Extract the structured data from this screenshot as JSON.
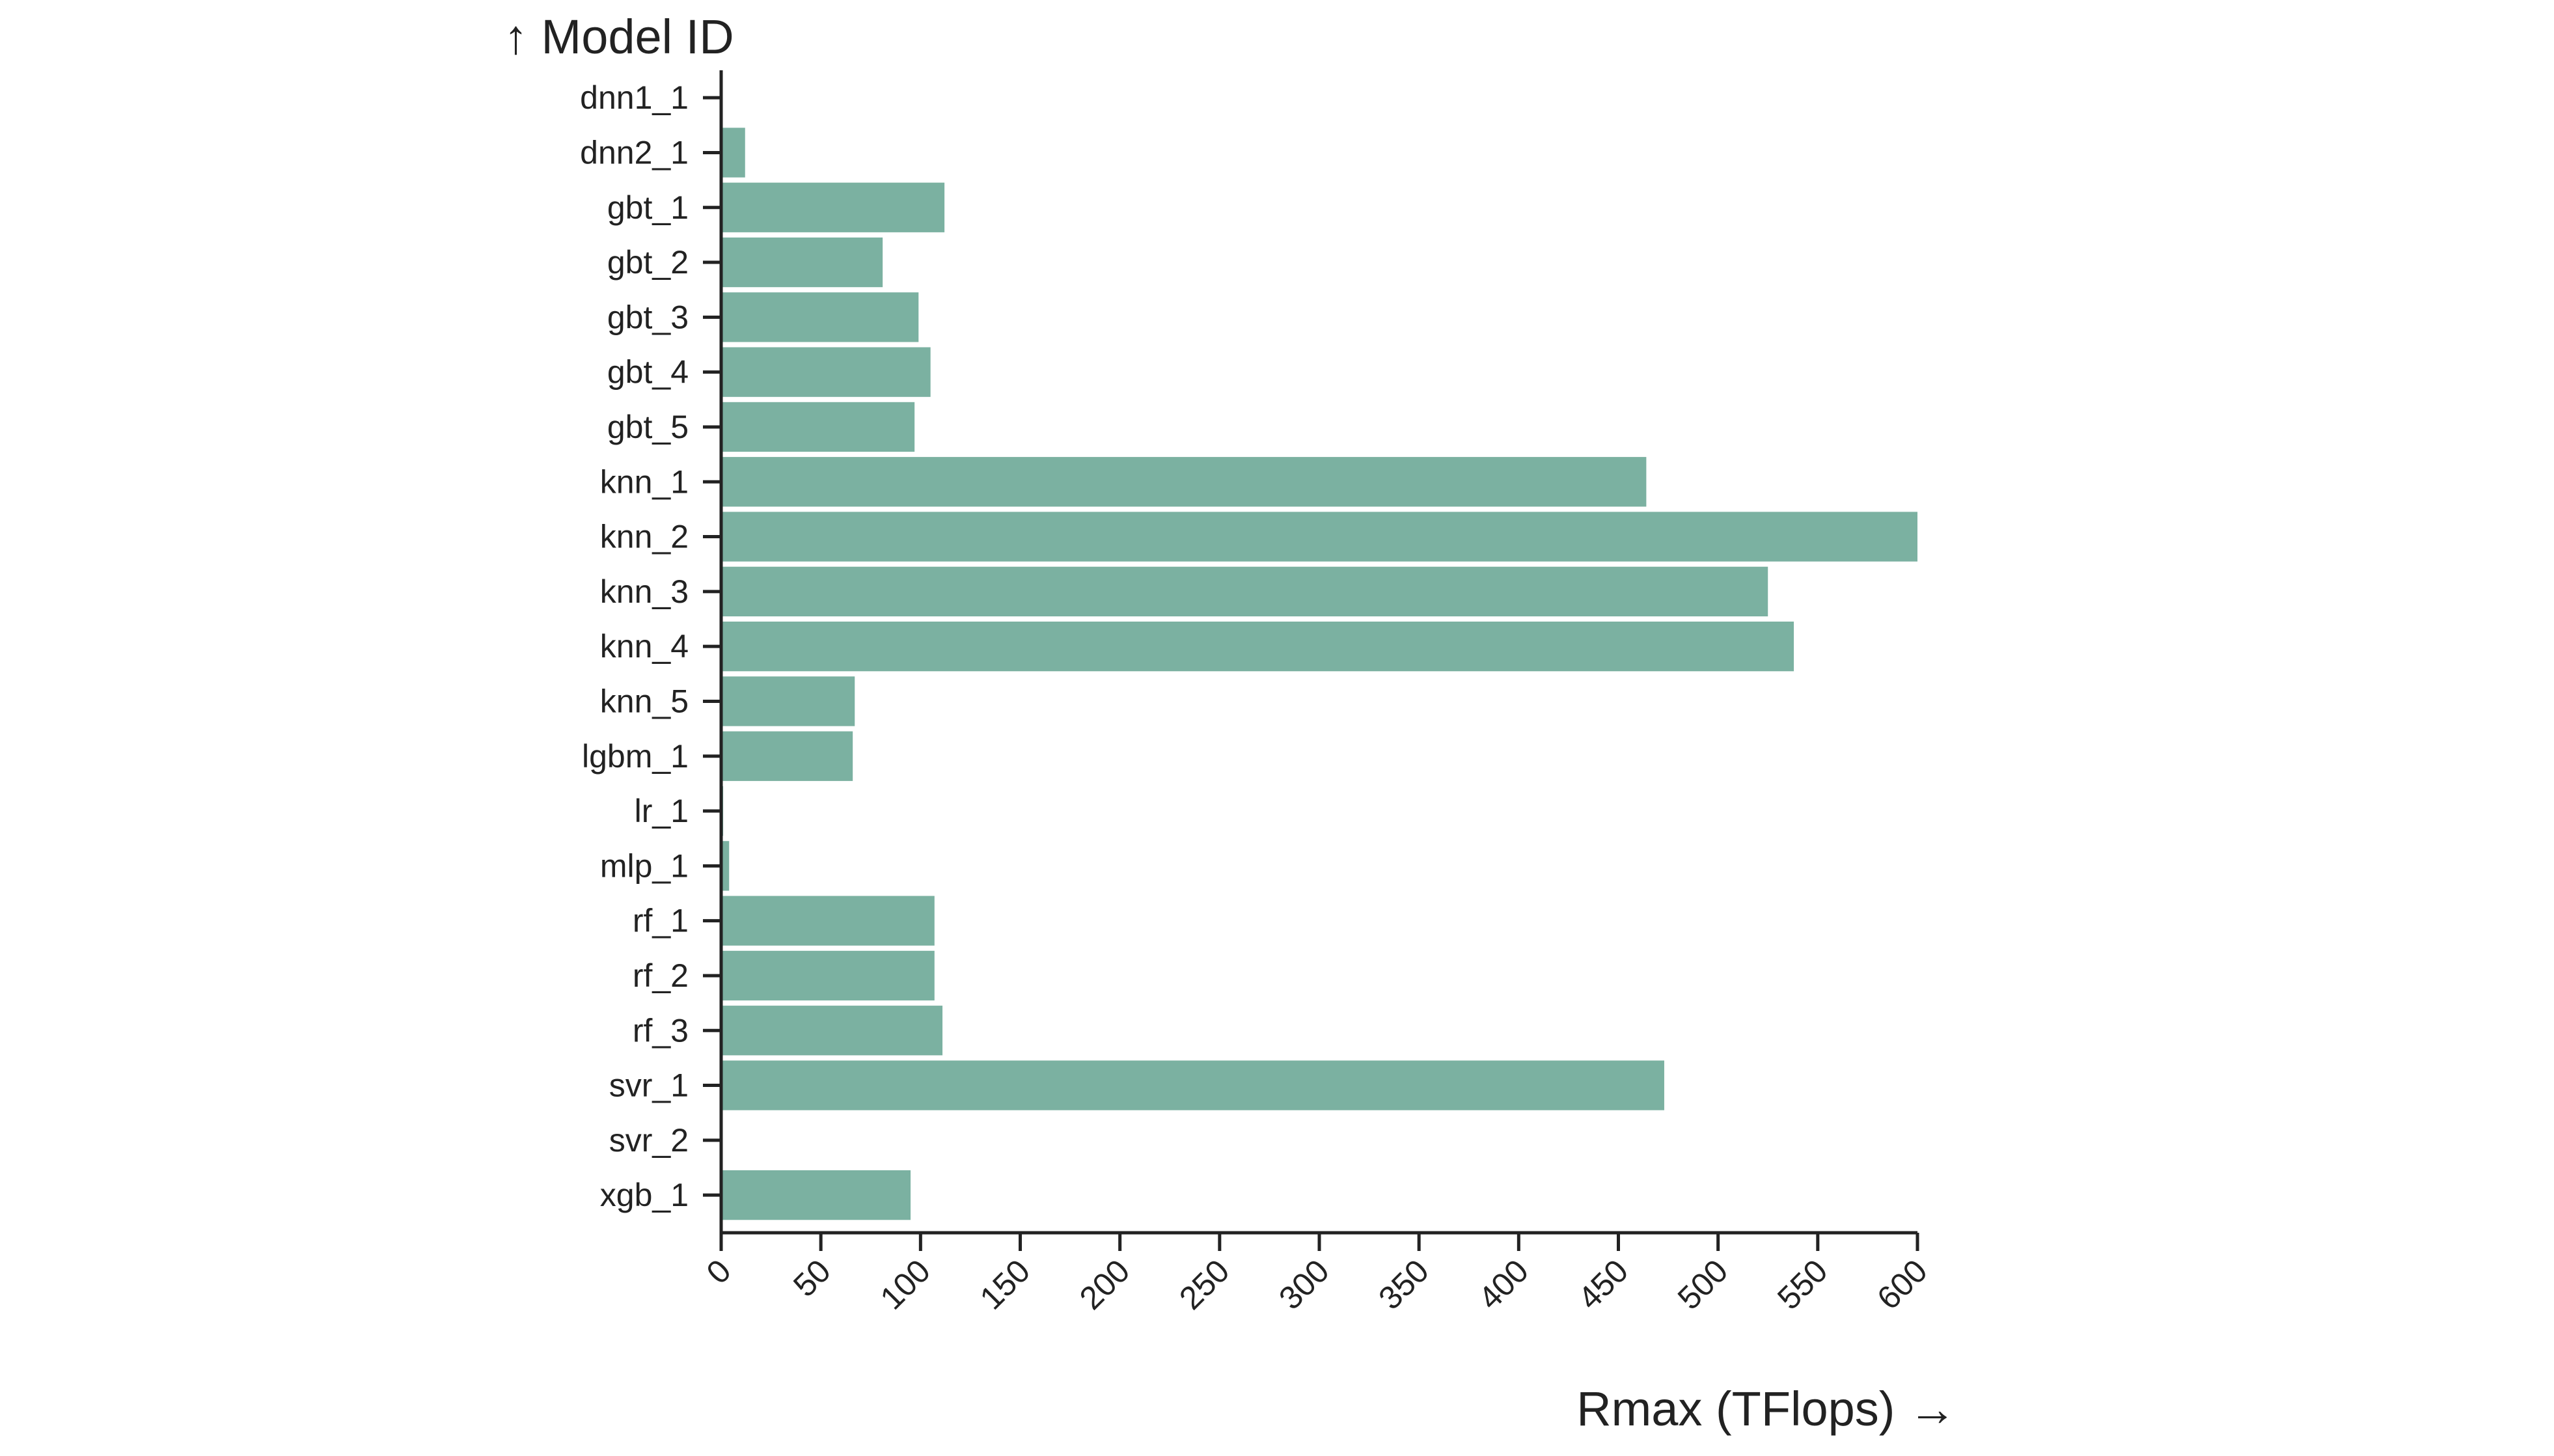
{
  "chart_data": {
    "type": "bar",
    "orientation": "horizontal",
    "y_axis_title": "↑ Model ID",
    "x_axis_title": "Rmax (TFlops) →",
    "bar_color": "#7bb1a1",
    "xlim": [
      0,
      600
    ],
    "x_ticks": [
      "0",
      "50",
      "100",
      "150",
      "200",
      "250",
      "300",
      "350",
      "400",
      "450",
      "500",
      "550",
      "600"
    ],
    "categories": [
      "dnn1_1",
      "dnn2_1",
      "gbt_1",
      "gbt_2",
      "gbt_3",
      "gbt_4",
      "gbt_5",
      "knn_1",
      "knn_2",
      "knn_3",
      "knn_4",
      "knn_5",
      "lgbm_1",
      "lr_1",
      "mlp_1",
      "rf_1",
      "rf_2",
      "rf_3",
      "svr_1",
      "svr_2",
      "xgb_1"
    ],
    "values": [
      0,
      12,
      112,
      81,
      99,
      105,
      97,
      464,
      600,
      525,
      538,
      67,
      66,
      1,
      4,
      107,
      107,
      111,
      473,
      0,
      95
    ],
    "grid": false,
    "legend": "none"
  }
}
